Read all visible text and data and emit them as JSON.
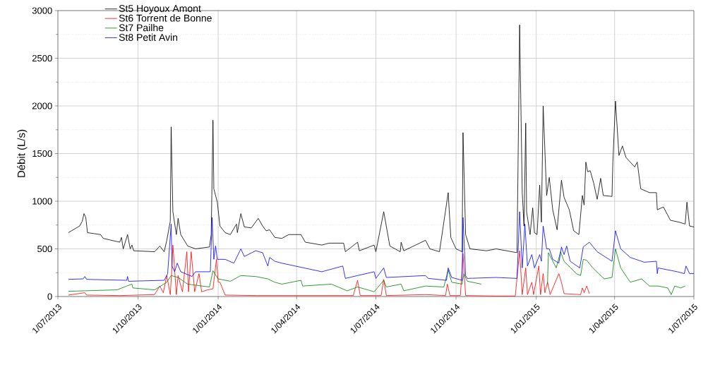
{
  "chart_data": {
    "type": "line",
    "ylabel": "Débit (L/s)",
    "xlim": [
      "2013-07-01",
      "2015-07-01"
    ],
    "ylim": [
      0,
      3000
    ],
    "xticks": [
      {
        "value": "2013-07-01",
        "label": "1/07/2013"
      },
      {
        "value": "2013-10-01",
        "label": "1/10/2013"
      },
      {
        "value": "2014-01-01",
        "label": "1/01/2014"
      },
      {
        "value": "2014-04-01",
        "label": "1/04/2014"
      },
      {
        "value": "2014-07-01",
        "label": "1/07/2014"
      },
      {
        "value": "2014-10-01",
        "label": "1/10/2014"
      },
      {
        "value": "2015-01-01",
        "label": "1/01/2015"
      },
      {
        "value": "2015-04-01",
        "label": "1/04/2015"
      },
      {
        "value": "2015-07-01",
        "label": "1/07/2015"
      }
    ],
    "yticks": [
      0,
      500,
      1000,
      1500,
      2000,
      2500,
      3000
    ],
    "grid": true,
    "legend": "top left",
    "series": [
      {
        "name": "St5 Hoyoux Amont",
        "color": "#000000",
        "x": [
          "2013-07-13",
          "2013-07-26",
          "2013-07-29",
          "2013-07-31",
          "2013-08-02",
          "2013-08-04",
          "2013-08-19",
          "2013-08-22",
          "2013-09-10",
          "2013-09-12",
          "2013-09-14",
          "2013-09-19",
          "2013-09-22",
          "2013-09-24",
          "2013-09-26",
          "2013-10-20",
          "2013-10-26",
          "2013-10-31",
          "2013-11-03",
          "2013-11-07",
          "2013-11-08",
          "2013-11-10",
          "2013-11-14",
          "2013-11-16",
          "2013-11-19",
          "2013-11-27",
          "2013-12-06",
          "2013-12-22",
          "2013-12-24",
          "2013-12-26",
          "2013-12-27",
          "2013-12-31",
          "2014-01-03",
          "2014-01-09",
          "2014-01-15",
          "2014-01-22",
          "2014-01-23",
          "2014-01-27",
          "2014-01-31",
          "2014-02-08",
          "2014-02-16",
          "2014-02-21",
          "2014-02-25",
          "2014-03-01",
          "2014-03-07",
          "2014-03-15",
          "2014-03-23",
          "2014-03-31",
          "2014-04-06",
          "2014-04-11",
          "2014-04-30",
          "2014-05-08",
          "2014-05-25",
          "2014-05-27",
          "2014-06-10",
          "2014-06-12",
          "2014-06-29",
          "2014-07-01",
          "2014-07-10",
          "2014-07-17",
          "2014-07-29",
          "2014-07-30",
          "2014-08-02",
          "2014-08-27",
          "2014-09-01",
          "2014-09-12",
          "2014-09-22",
          "2014-09-25",
          "2014-10-01",
          "2014-10-08",
          "2014-10-09",
          "2014-10-12",
          "2014-10-17",
          "2014-11-05",
          "2014-11-16",
          "2014-12-10",
          "2014-12-13",
          "2014-12-16",
          "2014-12-18",
          "2014-12-20",
          "2014-12-21",
          "2014-12-25",
          "2014-12-28",
          "2014-12-30",
          "2015-01-02",
          "2015-01-05",
          "2015-01-07",
          "2015-01-09",
          "2015-01-13",
          "2015-01-16",
          "2015-01-20",
          "2015-01-25",
          "2015-01-30",
          "2015-02-02",
          "2015-02-08",
          "2015-02-13",
          "2015-02-19",
          "2015-02-23",
          "2015-02-25",
          "2015-02-27",
          "2015-03-01",
          "2015-03-04",
          "2015-03-08",
          "2015-03-12",
          "2015-03-16",
          "2015-03-19",
          "2015-03-29",
          "2015-03-30",
          "2015-04-02",
          "2015-04-06",
          "2015-04-10",
          "2015-04-14",
          "2015-04-24",
          "2015-04-27",
          "2015-05-01",
          "2015-05-11",
          "2015-05-19",
          "2015-05-20",
          "2015-05-27",
          "2015-06-04",
          "2015-06-14",
          "2015-06-21",
          "2015-06-23",
          "2015-06-26",
          "2015-07-01"
        ],
        "values": [
          670,
          740,
          790,
          870,
          830,
          670,
          650,
          610,
          570,
          620,
          500,
          650,
          500,
          540,
          480,
          470,
          530,
          470,
          590,
          790,
          1780,
          890,
          650,
          820,
          650,
          530,
          500,
          520,
          650,
          1850,
          1130,
          990,
          740,
          670,
          650,
          760,
          670,
          870,
          730,
          720,
          820,
          740,
          690,
          700,
          620,
          610,
          650,
          650,
          650,
          570,
          540,
          560,
          560,
          470,
          570,
          480,
          540,
          470,
          890,
          530,
          470,
          570,
          480,
          590,
          500,
          470,
          1090,
          620,
          500,
          470,
          1720,
          650,
          500,
          480,
          500,
          460,
          2850,
          1090,
          740,
          1820,
          890,
          650,
          930,
          670,
          650,
          1170,
          780,
          2000,
          1060,
          1250,
          910,
          700,
          1220,
          1040,
          910,
          690,
          650,
          1060,
          960,
          1410,
          1310,
          1320,
          1190,
          1020,
          1240,
          1060,
          1050,
          1410,
          2050,
          1480,
          1580,
          1460,
          1360,
          1410,
          1130,
          1090,
          1090,
          910,
          940,
          800,
          780,
          760,
          990,
          740,
          730
        ]
      },
      {
        "name": "St6 Torrent de Bonne",
        "color": "#ff0000",
        "x": [
          "2013-07-13",
          "2013-08-01",
          "2013-08-03",
          "2013-09-10",
          "2013-10-20",
          "2013-10-26",
          "2013-10-30",
          "2013-11-03",
          "2013-11-07",
          "2013-11-09",
          "2013-11-10",
          "2013-11-14",
          "2013-11-16",
          "2013-11-21",
          "2013-11-26",
          "2013-11-28",
          "2013-12-01",
          "2013-12-05",
          "2013-12-10",
          "2013-12-13",
          "2013-12-20",
          "2013-12-26",
          "2013-12-30",
          "2014-01-01",
          "2014-01-03",
          "2014-01-09",
          "2014-02-15",
          "2014-04-01",
          "2014-06-05",
          "2014-06-10",
          "2014-06-13",
          "2014-07-07",
          "2014-07-10",
          "2014-07-13",
          "2014-08-27",
          "2014-09-19",
          "2014-09-21",
          "2014-09-24",
          "2014-10-06",
          "2014-10-09",
          "2014-10-12",
          "2014-11-16",
          "2014-12-08",
          "2014-12-13",
          "2014-12-16",
          "2014-12-20",
          "2014-12-22",
          "2014-12-27",
          "2014-12-29",
          "2015-01-04",
          "2015-01-06",
          "2015-01-09",
          "2015-01-11",
          "2015-01-14",
          "2015-01-17",
          "2015-01-27",
          "2015-01-30",
          "2015-02-02",
          "2015-02-21",
          "2015-02-23",
          "2015-02-25",
          "2015-02-28",
          "2015-03-03"
        ],
        "values": [
          15,
          40,
          15,
          10,
          20,
          110,
          40,
          220,
          20,
          320,
          540,
          20,
          220,
          50,
          470,
          50,
          470,
          50,
          240,
          50,
          70,
          80,
          390,
          150,
          150,
          15,
          10,
          10,
          10,
          170,
          10,
          10,
          180,
          10,
          20,
          10,
          130,
          10,
          10,
          450,
          10,
          5,
          5,
          480,
          20,
          300,
          20,
          150,
          20,
          320,
          20,
          240,
          40,
          150,
          20,
          240,
          150,
          30,
          20,
          90,
          40,
          110,
          30
        ]
      },
      {
        "name": "St7 Pailhe",
        "color": "#008000",
        "x": [
          "2013-07-13",
          "2013-08-01",
          "2013-09-07",
          "2013-09-18",
          "2013-09-24",
          "2013-09-25",
          "2013-10-20",
          "2013-11-03",
          "2013-11-08",
          "2013-11-16",
          "2013-11-27",
          "2013-12-22",
          "2013-12-26",
          "2014-01-01",
          "2014-01-15",
          "2014-01-27",
          "2014-02-13",
          "2014-02-27",
          "2014-03-07",
          "2014-03-15",
          "2014-04-06",
          "2014-04-08",
          "2014-05-11",
          "2014-05-29",
          "2014-06-10",
          "2014-06-29",
          "2014-07-10",
          "2014-07-13",
          "2014-07-30",
          "2014-08-02",
          "2014-08-27",
          "2014-09-17",
          "2014-09-22",
          "2014-09-26",
          "2014-10-08",
          "2014-10-10",
          "2014-10-14",
          "2014-10-30",
          "2014-12-01",
          "2015-01-14",
          "2015-01-15",
          "2015-01-24",
          "2015-01-29",
          "2015-02-02",
          "2015-02-16",
          "2015-02-21",
          "2015-02-24",
          "2015-02-28",
          "2015-03-07",
          "2015-03-20",
          "2015-03-29",
          "2015-04-02",
          "2015-04-08",
          "2015-04-19",
          "2015-05-02",
          "2015-05-11",
          "2015-05-21",
          "2015-06-01",
          "2015-06-05",
          "2015-06-09",
          "2015-06-16",
          "2015-06-21"
        ],
        "values": [
          55,
          60,
          70,
          110,
          130,
          90,
          70,
          150,
          220,
          200,
          130,
          100,
          270,
          185,
          160,
          220,
          210,
          185,
          150,
          130,
          170,
          110,
          130,
          60,
          100,
          50,
          170,
          100,
          130,
          60,
          110,
          100,
          280,
          150,
          130,
          240,
          160,
          130,
          null,
          130,
          460,
          300,
          470,
          370,
          240,
          220,
          390,
          380,
          300,
          185,
          200,
          500,
          300,
          150,
          185,
          110,
          110,
          90,
          20,
          110,
          90,
          110
        ]
      },
      {
        "name": "St8 Petit Avin",
        "color": "#0000ff",
        "x": [
          "2013-07-13",
          "2013-07-30",
          "2013-08-01",
          "2013-08-03",
          "2013-09-18",
          "2013-09-19",
          "2013-09-20",
          "2013-10-31",
          "2013-11-04",
          "2013-11-08",
          "2013-11-09",
          "2013-11-12",
          "2013-11-15",
          "2013-11-19",
          "2013-12-02",
          "2013-12-06",
          "2013-12-23",
          "2013-12-25",
          "2013-12-27",
          "2013-12-29",
          "2013-12-31",
          "2014-01-09",
          "2014-01-19",
          "2014-01-27",
          "2014-01-31",
          "2014-02-13",
          "2014-02-21",
          "2014-02-27",
          "2014-03-01",
          "2014-03-07",
          "2014-03-15",
          "2014-04-30",
          "2014-05-24",
          "2014-05-27",
          "2014-06-10",
          "2014-06-29",
          "2014-07-01",
          "2014-07-10",
          "2014-07-13",
          "2014-08-27",
          "2014-08-30",
          "2014-09-20",
          "2014-09-22",
          "2014-09-26",
          "2014-10-08",
          "2014-10-09",
          "2014-10-12",
          "2014-10-14",
          "2014-11-16",
          "2014-12-10",
          "2014-12-13",
          "2014-12-16",
          "2014-12-19",
          "2014-12-22",
          "2014-12-27",
          "2014-12-30",
          "2015-01-05",
          "2015-01-07",
          "2015-01-09",
          "2015-01-13",
          "2015-01-16",
          "2015-01-20",
          "2015-01-27",
          "2015-01-30",
          "2015-02-02",
          "2015-02-05",
          "2015-02-09",
          "2015-02-20",
          "2015-02-24",
          "2015-03-03",
          "2015-03-12",
          "2015-03-29",
          "2015-04-02",
          "2015-04-08",
          "2015-04-19",
          "2015-05-05",
          "2015-05-19",
          "2015-05-20",
          "2015-05-21",
          "2015-06-12",
          "2015-06-20",
          "2015-06-22",
          "2015-06-26",
          "2015-07-01"
        ],
        "values": [
          180,
          185,
          210,
          180,
          170,
          210,
          160,
          170,
          240,
          760,
          320,
          260,
          350,
          260,
          210,
          260,
          260,
          830,
          390,
          530,
          390,
          390,
          350,
          500,
          420,
          480,
          460,
          320,
          410,
          370,
          350,
          260,
          320,
          190,
          220,
          260,
          190,
          300,
          200,
          220,
          190,
          170,
          300,
          200,
          170,
          830,
          220,
          190,
          200,
          190,
          890,
          300,
          760,
          320,
          440,
          300,
          440,
          370,
          740,
          500,
          500,
          390,
          350,
          520,
          440,
          530,
          370,
          300,
          520,
          570,
          470,
          370,
          690,
          500,
          410,
          360,
          370,
          240,
          300,
          260,
          240,
          320,
          240,
          240
        ]
      }
    ]
  }
}
